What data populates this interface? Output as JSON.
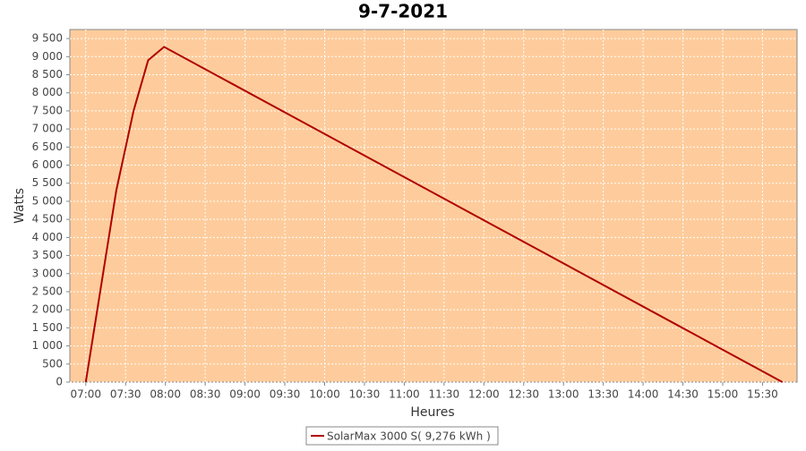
{
  "chart_data": {
    "type": "line",
    "title": "9-7-2021",
    "x_label": "Heures",
    "y_label": "Watts",
    "x": [
      "07:00",
      "07:23",
      "07:36",
      "07:47",
      "07:59",
      "15:45"
    ],
    "series": [
      {
        "name": "SolarMax 3000 S( 9,276 kWh )",
        "color": "#b00000",
        "values": [
          0,
          5300,
          7500,
          8900,
          9270,
          0
        ]
      }
    ],
    "xlim": [
      "06:48",
      "15:56"
    ],
    "xticks": [
      "07:00",
      "07:30",
      "08:00",
      "08:30",
      "09:00",
      "09:30",
      "10:00",
      "10:30",
      "11:00",
      "11:30",
      "12:00",
      "12:30",
      "13:00",
      "13:30",
      "14:00",
      "14:30",
      "15:00",
      "15:30"
    ],
    "ylim": [
      0,
      9750
    ],
    "yticks": [
      0,
      500,
      {
        "value": 1000,
        "label": "1 000"
      },
      {
        "value": 1500,
        "label": "1 500"
      },
      {
        "value": 2000,
        "label": "2 000"
      },
      {
        "value": 2500,
        "label": "2 500"
      },
      {
        "value": 3000,
        "label": "3 000"
      },
      {
        "value": 3500,
        "label": "3 500"
      },
      {
        "value": 4000,
        "label": "4 000"
      },
      {
        "value": 4500,
        "label": "4 500"
      },
      {
        "value": 5000,
        "label": "5 000"
      },
      {
        "value": 5500,
        "label": "5 500"
      },
      {
        "value": 6000,
        "label": "6 000"
      },
      {
        "value": 6500,
        "label": "6 500"
      },
      {
        "value": 7000,
        "label": "7 000"
      },
      {
        "value": 7500,
        "label": "7 500"
      },
      {
        "value": 8000,
        "label": "8 000"
      },
      {
        "value": 8500,
        "label": "8 500"
      },
      {
        "value": 9000,
        "label": "9 000"
      },
      {
        "value": 9500,
        "label": "9 500"
      }
    ],
    "background": "#fecc9c",
    "grid": true
  }
}
